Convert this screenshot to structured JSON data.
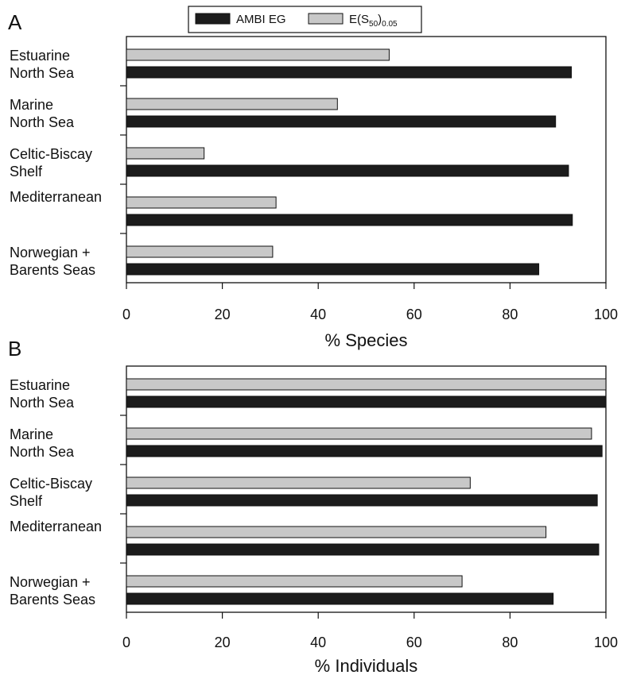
{
  "chart_data": [
    {
      "panel": "A",
      "type": "bar",
      "orientation": "horizontal",
      "categories": [
        [
          "Estuarine",
          "North Sea"
        ],
        [
          "Marine",
          "North Sea"
        ],
        [
          "Celtic-Biscay",
          "Shelf"
        ],
        [
          "Mediterranean"
        ],
        [
          "Norwegian +",
          "Barents Seas"
        ]
      ],
      "series": [
        {
          "name": "E(S50)0.05",
          "color": "#c8c8c8",
          "values": [
            54.8,
            44.0,
            16.2,
            31.2,
            30.5
          ]
        },
        {
          "name": "AMBI EG",
          "color": "#1c1c1c",
          "values": [
            92.8,
            89.5,
            92.2,
            93.0,
            86.0
          ]
        }
      ],
      "xlabel": "% Species",
      "xlim": [
        0,
        100
      ],
      "xticks": [
        0,
        20,
        40,
        60,
        80,
        100
      ],
      "grid": false,
      "legend": "top"
    },
    {
      "panel": "B",
      "type": "bar",
      "orientation": "horizontal",
      "categories": [
        [
          "Estuarine",
          "North Sea"
        ],
        [
          "Marine",
          "North Sea"
        ],
        [
          "Celtic-Biscay",
          "Shelf"
        ],
        [
          "Mediterranean"
        ],
        [
          "Norwegian +",
          "Barents Seas"
        ]
      ],
      "series": [
        {
          "name": "E(S50)0.05",
          "color": "#c8c8c8",
          "values": [
            100.0,
            97.0,
            71.7,
            87.5,
            70.0
          ]
        },
        {
          "name": "AMBI EG",
          "color": "#1c1c1c",
          "values": [
            100.0,
            99.2,
            98.2,
            98.5,
            89.0
          ]
        }
      ],
      "xlabel": "% Individuals",
      "xlim": [
        0,
        100
      ],
      "xticks": [
        0,
        20,
        40,
        60,
        80,
        100
      ],
      "grid": false,
      "legend": "none"
    }
  ],
  "legend": {
    "items": [
      {
        "label": "AMBI EG",
        "color": "#1c1c1c"
      },
      {
        "label_parts": [
          "E(S",
          "50",
          ")",
          "0.05"
        ],
        "color": "#c8c8c8"
      }
    ]
  }
}
